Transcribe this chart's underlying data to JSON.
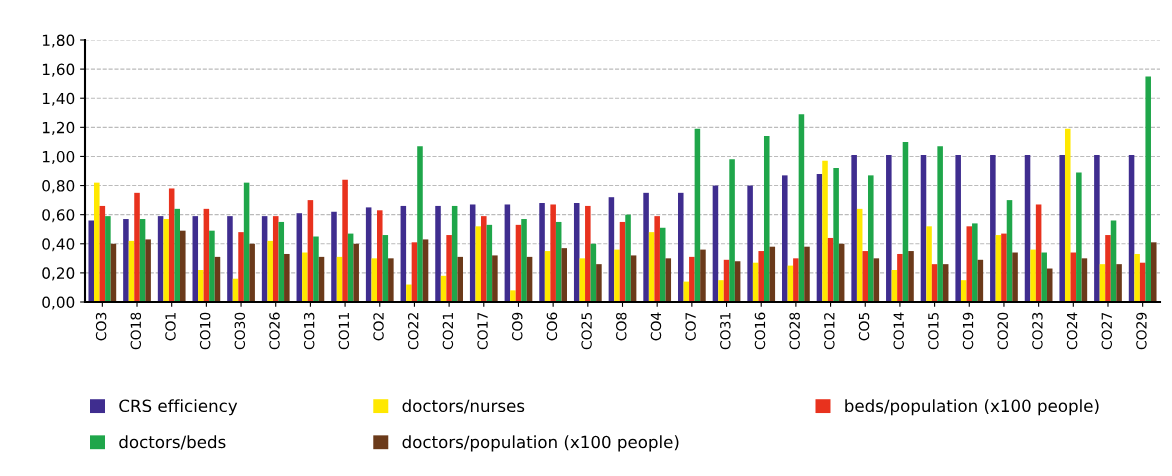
{
  "chart_data": {
    "type": "bar",
    "categories": [
      "CO3",
      "CO18",
      "CO1",
      "CO10",
      "CO30",
      "CO26",
      "CO13",
      "CO11",
      "CO2",
      "CO22",
      "CO21",
      "CO17",
      "CO9",
      "CO6",
      "CO25",
      "CO8",
      "CO4",
      "CO7",
      "CO31",
      "CO16",
      "CO28",
      "CO12",
      "CO5",
      "CO14",
      "CO15",
      "CO19",
      "CO20",
      "CO23",
      "CO24",
      "CO27",
      "CO29"
    ],
    "series": [
      {
        "name": "CRS efficiency",
        "color": "#3f2d8f",
        "values": [
          0.56,
          0.57,
          0.59,
          0.59,
          0.59,
          0.59,
          0.61,
          0.62,
          0.65,
          0.66,
          0.66,
          0.67,
          0.67,
          0.68,
          0.68,
          0.72,
          0.75,
          0.75,
          0.8,
          0.8,
          0.87,
          0.88,
          1.01,
          1.01,
          1.01,
          1.01,
          1.01,
          1.01,
          1.01,
          1.01,
          1.01
        ]
      },
      {
        "name": "doctors/nurses",
        "color": "#ffe800",
        "values": [
          0.82,
          0.42,
          0.57,
          0.22,
          0.16,
          0.42,
          0.34,
          0.31,
          0.3,
          0.12,
          0.18,
          0.52,
          0.08,
          0.35,
          0.3,
          0.36,
          0.48,
          0.14,
          0.15,
          0.27,
          0.25,
          0.97,
          0.64,
          0.22,
          0.52,
          0.15,
          0.46,
          0.36,
          1.19,
          0.26,
          0.33
        ]
      },
      {
        "name": "beds/population (x100 people)",
        "color": "#e8321e",
        "values": [
          0.66,
          0.75,
          0.78,
          0.64,
          0.48,
          0.59,
          0.7,
          0.84,
          0.63,
          0.41,
          0.46,
          0.59,
          0.53,
          0.67,
          0.66,
          0.55,
          0.59,
          0.31,
          0.29,
          0.35,
          0.3,
          0.44,
          0.35,
          0.33,
          0.26,
          0.52,
          0.47,
          0.67,
          0.34,
          0.46,
          0.27
        ]
      },
      {
        "name": "doctors/beds",
        "color": "#1fa64a",
        "values": [
          0.59,
          0.57,
          0.64,
          0.49,
          0.82,
          0.55,
          0.45,
          0.47,
          0.46,
          1.07,
          0.66,
          0.53,
          0.57,
          0.55,
          0.4,
          0.6,
          0.51,
          1.19,
          0.98,
          1.14,
          1.29,
          0.92,
          0.87,
          1.1,
          1.07,
          0.54,
          0.7,
          0.34,
          0.89,
          0.56,
          1.55
        ]
      },
      {
        "name": "doctors/population (x100 people)",
        "color": "#6b3a1a",
        "values": [
          0.4,
          0.43,
          0.49,
          0.31,
          0.4,
          0.33,
          0.31,
          0.4,
          0.3,
          0.43,
          0.31,
          0.32,
          0.31,
          0.37,
          0.26,
          0.32,
          0.3,
          0.36,
          0.28,
          0.38,
          0.38,
          0.4,
          0.3,
          0.35,
          0.26,
          0.29,
          0.34,
          0.23,
          0.3,
          0.26,
          0.41
        ]
      }
    ],
    "ylim": [
      0,
      1.8
    ],
    "yticks": [
      {
        "value": 0,
        "label": "0,00"
      },
      {
        "value": 0.2,
        "label": "0,20"
      },
      {
        "value": 0.4,
        "label": "0,40"
      },
      {
        "value": 0.6,
        "label": "0,60"
      },
      {
        "value": 0.8,
        "label": "0,80"
      },
      {
        "value": 1.0,
        "label": "1,00"
      },
      {
        "value": 1.2,
        "label": "1,20"
      },
      {
        "value": 1.4,
        "label": "1,40"
      },
      {
        "value": 1.6,
        "label": "1,60"
      },
      {
        "value": 1.8,
        "label": "1,80"
      }
    ],
    "grid": "y",
    "legend": "bottom"
  }
}
